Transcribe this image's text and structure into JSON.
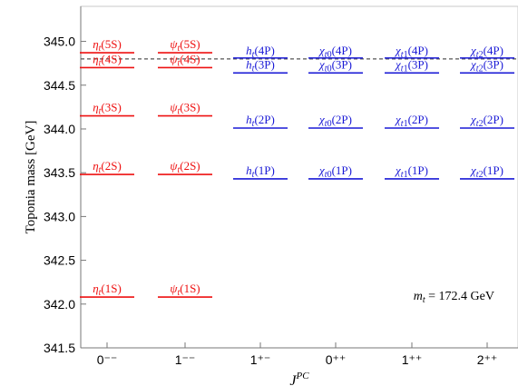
{
  "chart_data": {
    "type": "scatter",
    "xlabel": "J^PC",
    "ylabel": "Toponia mass [GeV]",
    "categories": [
      "0⁻⁻",
      "1⁻⁻",
      "1⁺⁻",
      "0⁺⁺",
      "1⁺⁺",
      "2⁺⁺"
    ],
    "ylim": [
      341.5,
      345.4
    ],
    "yticks": [
      "341.5",
      "342.0",
      "342.5",
      "343.0",
      "343.5",
      "344.0",
      "344.5",
      "345.0"
    ],
    "threshold": 344.8,
    "grid": false,
    "colors": {
      "s_wave": "#ee1111",
      "p_wave": "#1a1ad6",
      "threshold": "#555555"
    },
    "series": [
      {
        "name": "",
        "color": "#ee1111",
        "column": 0,
        "levels": [
          {
            "label": "ηt(1S)",
            "mass": 342.08
          },
          {
            "label": "ηt(2S)",
            "mass": 343.48
          },
          {
            "label": "ηt(3S)",
            "mass": 344.15
          },
          {
            "label": "ηt(4S)",
            "mass": 344.7
          },
          {
            "label": "ηt(5S)",
            "mass": 344.87
          }
        ]
      },
      {
        "name": "",
        "color": "#ee1111",
        "column": 1,
        "levels": [
          {
            "label": "ψt(1S)",
            "mass": 342.08
          },
          {
            "label": "ψt(2S)",
            "mass": 343.48
          },
          {
            "label": "ψt(3S)",
            "mass": 344.15
          },
          {
            "label": "ψt(4S)",
            "mass": 344.7
          },
          {
            "label": "ψt(5S)",
            "mass": 344.87
          }
        ]
      },
      {
        "name": "",
        "color": "#1a1ad6",
        "column": 2,
        "levels": [
          {
            "label": "ht(1P)",
            "mass": 343.43
          },
          {
            "label": "ht(2P)",
            "mass": 344.01
          },
          {
            "label": "ht(3P)",
            "mass": 344.64
          },
          {
            "label": "ht(4P)",
            "mass": 344.81
          }
        ]
      },
      {
        "name": "",
        "color": "#1a1ad6",
        "column": 3,
        "levels": [
          {
            "label": "χt0(1P)",
            "mass": 343.43
          },
          {
            "label": "χt0(2P)",
            "mass": 344.01
          },
          {
            "label": "χt0(3P)",
            "mass": 344.64
          },
          {
            "label": "χt0(4P)",
            "mass": 344.81
          }
        ]
      },
      {
        "name": "",
        "color": "#1a1ad6",
        "column": 4,
        "levels": [
          {
            "label": "χt1(1P)",
            "mass": 343.43
          },
          {
            "label": "χt1(2P)",
            "mass": 344.01
          },
          {
            "label": "χt1(3P)",
            "mass": 344.64
          },
          {
            "label": "χt1(4P)",
            "mass": 344.81
          }
        ]
      },
      {
        "name": "",
        "color": "#1a1ad6",
        "column": 5,
        "levels": [
          {
            "label": "χt2(1P)",
            "mass": 343.43
          },
          {
            "label": "χt2(2P)",
            "mass": 344.01
          },
          {
            "label": "χt2(3P)",
            "mass": 344.64
          },
          {
            "label": "χt2(4P)",
            "mass": 344.81
          }
        ]
      }
    ],
    "annotations": [
      {
        "text": "mt = 172.4 GeV"
      }
    ]
  }
}
